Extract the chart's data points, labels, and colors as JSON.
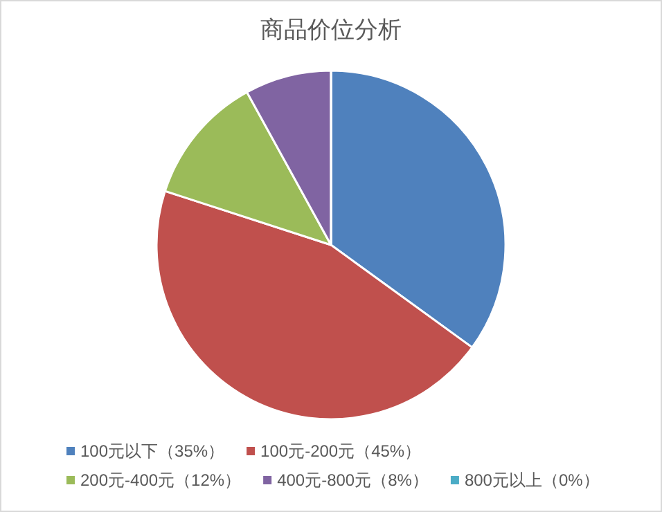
{
  "chart_data": {
    "type": "pie",
    "title": "商品价位分析",
    "categories": [
      "100元以下（35%）",
      "100元-200元（45%）",
      "200元-400元（12%）",
      "400元-800元（8%）",
      "800元以上（0%）"
    ],
    "values": [
      35,
      45,
      12,
      8,
      0
    ],
    "colors": [
      "#4f81bd",
      "#c0504d",
      "#9bbb59",
      "#8064a2",
      "#4bacc6"
    ],
    "legend": "bottom"
  }
}
